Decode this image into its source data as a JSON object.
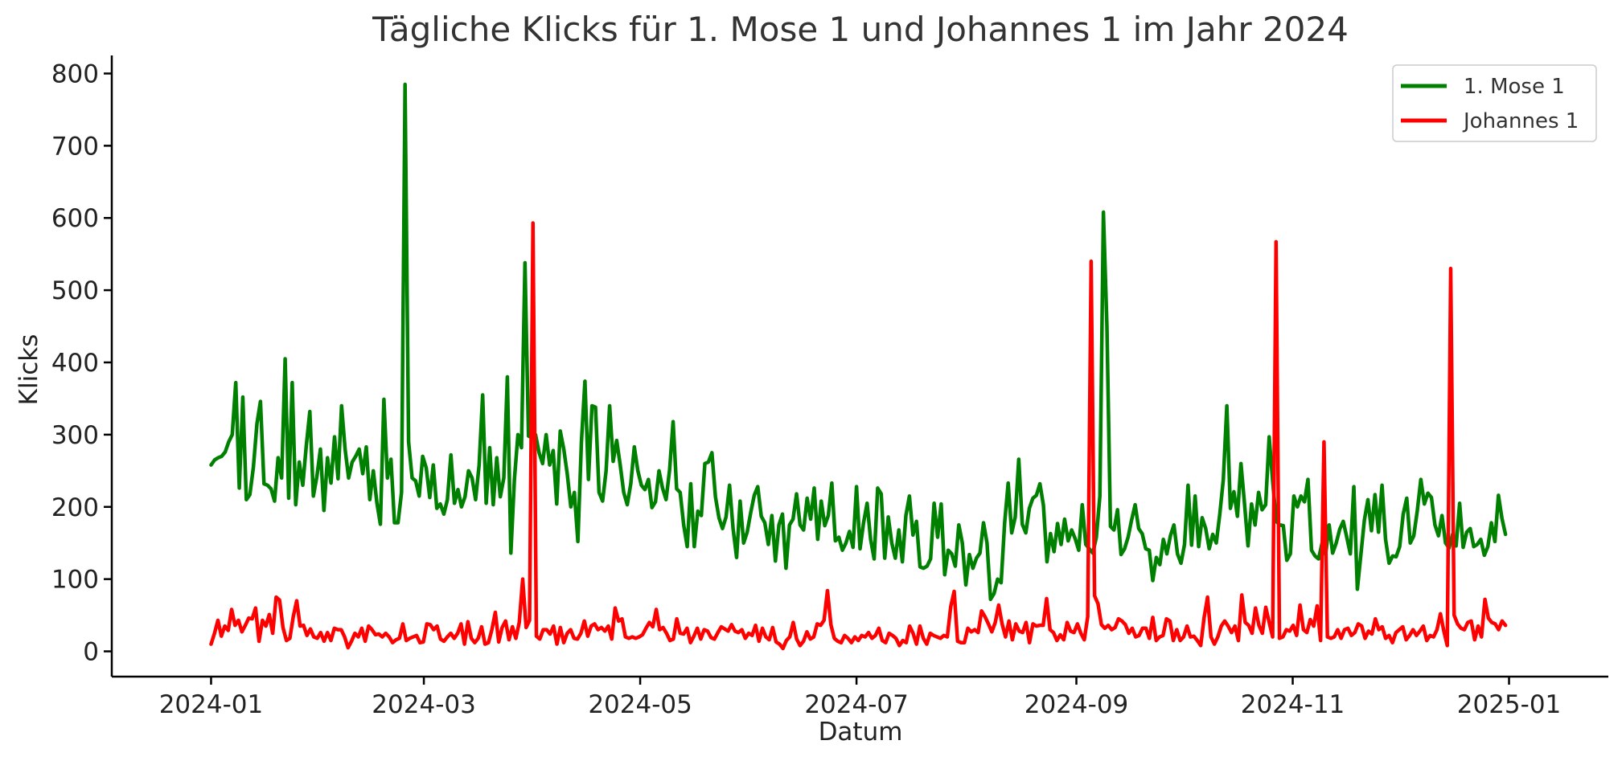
{
  "chart_data": {
    "type": "line",
    "title": "Tägliche Klicks für 1. Mose 1 und Johannes 1 im Jahr 2024",
    "xlabel": "Datum",
    "ylabel": "Klicks",
    "xlim": [
      "2023-12-04",
      "2025-01-29"
    ],
    "ylim": [
      -35,
      825
    ],
    "x_ticks": [
      "2024-01",
      "2024-03",
      "2024-05",
      "2024-07",
      "2024-09",
      "2024-11",
      "2025-01"
    ],
    "y_ticks": [
      0,
      100,
      200,
      300,
      400,
      500,
      600,
      700,
      800
    ],
    "grid": false,
    "legend_position": "top-right",
    "x_start": "2024-01-01",
    "x_end": "2024-12-31",
    "series": [
      {
        "name": "1. Mose 1",
        "color": "#008000",
        "values": [
          258,
          265,
          268,
          270,
          276,
          290,
          300,
          372,
          226,
          352,
          210,
          217,
          255,
          315,
          346,
          232,
          230,
          225,
          208,
          268,
          240,
          405,
          212,
          372,
          203,
          262,
          230,
          285,
          332,
          215,
          242,
          280,
          195,
          268,
          233,
          297,
          239,
          340,
          280,
          240,
          262,
          270,
          280,
          246,
          283,
          210,
          250,
          206,
          176,
          349,
          240,
          266,
          178,
          178,
          220,
          785,
          290,
          240,
          236,
          215,
          270,
          254,
          213,
          258,
          198,
          204,
          190,
          210,
          272,
          205,
          224,
          200,
          214,
          250,
          240,
          210,
          258,
          355,
          205,
          282,
          203,
          268,
          214,
          240,
          380,
          136,
          238,
          300,
          282,
          538,
          298,
          296,
          300,
          275,
          260,
          300,
          258,
          278,
          204,
          305,
          280,
          245,
          200,
          220,
          152,
          290,
          374,
          238,
          340,
          338,
          220,
          208,
          250,
          340,
          263,
          292,
          258,
          220,
          203,
          232,
          283,
          250,
          230,
          224,
          238,
          199,
          207,
          250,
          226,
          210,
          251,
          318,
          225,
          220,
          175,
          145,
          232,
          145,
          194,
          188,
          260,
          262,
          275,
          214,
          185,
          170,
          186,
          230,
          170,
          130,
          208,
          150,
          165,
          192,
          216,
          228,
          187,
          178,
          148,
          188,
          125,
          175,
          190,
          115,
          175,
          183,
          218,
          175,
          168,
          212,
          183,
          226,
          155,
          208,
          174,
          188,
          233,
          153,
          158,
          140,
          150,
          166,
          144,
          228,
          142,
          178,
          205,
          155,
          128,
          226,
          218,
          129,
          186,
          150,
          129,
          168,
          124,
          188,
          215,
          161,
          180,
          117,
          115,
          118,
          128,
          205,
          158,
          204,
          106,
          140,
          135,
          118,
          175,
          150,
          92,
          134,
          115,
          129,
          136,
          178,
          150,
          72,
          80,
          100,
          95,
          178,
          233,
          164,
          186,
          266,
          176,
          164,
          198,
          212,
          216,
          232,
          202,
          124,
          163,
          138,
          177,
          148,
          183,
          153,
          168,
          156,
          140,
          203,
          148,
          142,
          136,
          158,
          215,
          608,
          450,
          173,
          168,
          196,
          134,
          142,
          158,
          182,
          203,
          170,
          163,
          142,
          140,
          98,
          130,
          120,
          155,
          135,
          160,
          175,
          135,
          122,
          148,
          230,
          147,
          215,
          145,
          185,
          170,
          142,
          162,
          150,
          190,
          238,
          340,
          198,
          221,
          187,
          260,
          205,
          146,
          204,
          175,
          220,
          196,
          203,
          297,
          235,
          180,
          175,
          174,
          126,
          135,
          215,
          200,
          215,
          207,
          238,
          140,
          132,
          128,
          150,
          134,
          175,
          136,
          150,
          169,
          180,
          158,
          135,
          228,
          86,
          134,
          182,
          210,
          167,
          217,
          165,
          230,
          155,
          122,
          132,
          131,
          145,
          190,
          212,
          150,
          160,
          195,
          238,
          204,
          219,
          213,
          175,
          160,
          188,
          150,
          143,
          162,
          146,
          205,
          144,
          165,
          170,
          145,
          148,
          155,
          133,
          145,
          178,
          152,
          216,
          184,
          162
        ]
      },
      {
        "name": "Johannes 1",
        "color": "#ff0000",
        "values": [
          10,
          25,
          43,
          21,
          35,
          29,
          58,
          36,
          43,
          27,
          36,
          46,
          45,
          60,
          14,
          43,
          35,
          51,
          25,
          75,
          71,
          33,
          15,
          18,
          48,
          70,
          35,
          36,
          22,
          31,
          20,
          18,
          26,
          14,
          26,
          15,
          32,
          30,
          30,
          20,
          5,
          14,
          25,
          20,
          32,
          14,
          35,
          30,
          23,
          24,
          20,
          25,
          20,
          12,
          16,
          18,
          38,
          15,
          18,
          20,
          22,
          12,
          13,
          38,
          37,
          30,
          35,
          17,
          14,
          20,
          25,
          18,
          25,
          38,
          10,
          41,
          18,
          12,
          18,
          34,
          10,
          12,
          30,
          54,
          13,
          33,
          42,
          16,
          34,
          18,
          40,
          100,
          33,
          43,
          593,
          21,
          17,
          30,
          30,
          24,
          35,
          10,
          33,
          12,
          25,
          30,
          18,
          17,
          25,
          42,
          21,
          35,
          38,
          30,
          33,
          28,
          35,
          17,
          60,
          42,
          45,
          20,
          18,
          20,
          18,
          20,
          23,
          32,
          40,
          34,
          58,
          30,
          33,
          25,
          15,
          17,
          45,
          25,
          24,
          32,
          12,
          21,
          32,
          17,
          30,
          28,
          19,
          17,
          26,
          34,
          31,
          28,
          37,
          28,
          26,
          30,
          18,
          25,
          22,
          36,
          14,
          32,
          20,
          16,
          33,
          13,
          10,
          4,
          15,
          20,
          40,
          17,
          8,
          14,
          27,
          17,
          20,
          38,
          36,
          43,
          84,
          37,
          18,
          14,
          12,
          22,
          18,
          12,
          20,
          15,
          22,
          20,
          26,
          18,
          22,
          32,
          15,
          12,
          25,
          22,
          18,
          8,
          15,
          12,
          35,
          25,
          10,
          35,
          18,
          10,
          25,
          22,
          20,
          18,
          22,
          20,
          62,
          83,
          14,
          12,
          12,
          32,
          27,
          30,
          26,
          56,
          48,
          38,
          27,
          40,
          64,
          38,
          20,
          42,
          16,
          38,
          28,
          26,
          40,
          12,
          38,
          35,
          36,
          36,
          73,
          30,
          26,
          15,
          23,
          16,
          40,
          28,
          26,
          38,
          25,
          16,
          48,
          540,
          77,
          66,
          37,
          32,
          36,
          30,
          33,
          45,
          42,
          37,
          25,
          32,
          20,
          22,
          32,
          32,
          18,
          47,
          15,
          20,
          22,
          45,
          42,
          15,
          30,
          15,
          20,
          35,
          20,
          21,
          15,
          8,
          47,
          75,
          20,
          10,
          20,
          35,
          42,
          35,
          26,
          35,
          15,
          78,
          40,
          36,
          25,
          60,
          36,
          25,
          61,
          40,
          20,
          567,
          18,
          20,
          30,
          28,
          36,
          22,
          64,
          30,
          26,
          44,
          35,
          63,
          15,
          290,
          20,
          18,
          20,
          30,
          18,
          30,
          32,
          22,
          26,
          38,
          35,
          18,
          28,
          24,
          45,
          30,
          34,
          18,
          22,
          12,
          26,
          30,
          34,
          16,
          22,
          30,
          22,
          28,
          35,
          15,
          22,
          20,
          30,
          52,
          28,
          8,
          530,
          50,
          38,
          32,
          30,
          40,
          42,
          16,
          35,
          20,
          72,
          46,
          40,
          38,
          30,
          42,
          36
        ]
      }
    ]
  }
}
